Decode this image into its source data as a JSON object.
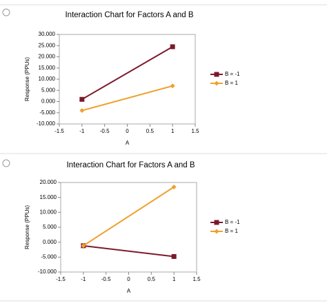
{
  "chart_data": [
    {
      "type": "line",
      "title": "Interaction Chart for Factors A and B",
      "x_label": "A",
      "y_label": "Response (PPUs)",
      "x": [
        -1,
        1
      ],
      "series": [
        {
          "name": "B = -1",
          "color": "#7a1a2c",
          "marker": "square",
          "values": [
            1,
            24.5
          ]
        },
        {
          "name": "B = 1",
          "color": "#f0a02c",
          "marker": "diamond",
          "values": [
            -4,
            7
          ]
        }
      ],
      "xlim": [
        -1.5,
        1.5
      ],
      "xticks": [
        -1.5,
        -1,
        -0.5,
        0,
        0.5,
        1,
        1.5
      ],
      "ylim": [
        -10,
        30
      ],
      "yticks": [
        {
          "value": -10,
          "label": "-10.000"
        },
        {
          "value": -5,
          "label": "-5.000"
        },
        {
          "value": 0,
          "label": "0.000"
        },
        {
          "value": 5,
          "label": "5.000"
        },
        {
          "value": 10,
          "label": "10.000"
        },
        {
          "value": 15,
          "label": "15.000"
        },
        {
          "value": 20,
          "label": "20.000"
        },
        {
          "value": 25,
          "label": "25.000"
        },
        {
          "value": 30,
          "label": "30.000"
        }
      ],
      "grid": false,
      "legend": "right"
    },
    {
      "type": "line",
      "title": "Interaction Chart for Factors A and B",
      "x_label": "A",
      "y_label": "Response (PPUs)",
      "x": [
        -1,
        1
      ],
      "series": [
        {
          "name": "B = -1",
          "color": "#7a1a2c",
          "marker": "square",
          "values": [
            -1.2,
            -4.8
          ]
        },
        {
          "name": "B = 1",
          "color": "#f0a02c",
          "marker": "diamond",
          "values": [
            -1.2,
            18.5
          ]
        }
      ],
      "xlim": [
        -1.5,
        1.5
      ],
      "xticks": [
        -1.5,
        -1,
        -0.5,
        0,
        0.5,
        1,
        1.5
      ],
      "ylim": [
        -10,
        20
      ],
      "yticks": [
        {
          "value": -10,
          "label": "-10.000"
        },
        {
          "value": -5,
          "label": "-5.000"
        },
        {
          "value": 0,
          "label": "0.000"
        },
        {
          "value": 5,
          "label": "5.000"
        },
        {
          "value": 10,
          "label": "10.000"
        },
        {
          "value": 15,
          "label": "15.000"
        },
        {
          "value": 20,
          "label": "20.000"
        }
      ],
      "grid": false,
      "legend": "right"
    }
  ]
}
